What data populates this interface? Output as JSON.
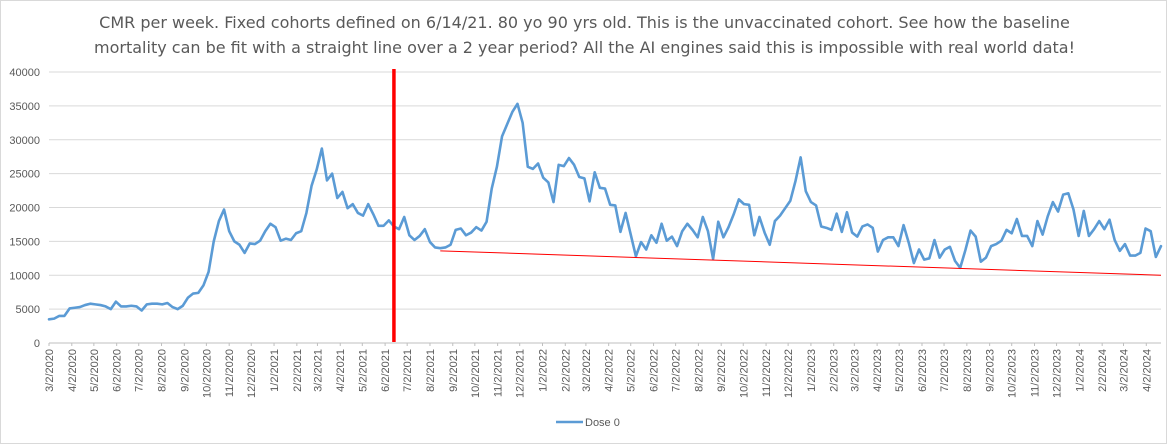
{
  "chart_data": {
    "type": "line",
    "title_line1": "CMR per week. Fixed cohorts defined on 6/14/21. 80 yo 90 yrs old. This is the unvaccinated cohort. See how the baseline",
    "title_line2": "mortality can be fit with a straight line over a 2 year period? All the AI engines said this is impossible with real world data!",
    "xlabel": "",
    "ylabel": "",
    "ylim": [
      0,
      40000
    ],
    "y_ticks": [
      0,
      5000,
      10000,
      15000,
      20000,
      25000,
      30000,
      35000,
      40000
    ],
    "x_start": "3/2/2020",
    "x_tick_labels": [
      "3/2/2020",
      "4/2/2020",
      "5/2/2020",
      "6/2/2020",
      "7/2/2020",
      "8/2/2020",
      "9/2/2020",
      "10/2/2020",
      "11/2/2020",
      "12/2/2020",
      "1/2/2021",
      "2/2/2021",
      "3/2/2021",
      "4/2/2021",
      "5/2/2021",
      "6/2/2021",
      "7/2/2021",
      "8/2/2021",
      "9/2/2021",
      "10/2/2021",
      "11/2/2021",
      "12/2/2021",
      "1/2/2022",
      "2/2/2022",
      "3/2/2022",
      "4/2/2022",
      "5/2/2022",
      "6/2/2022",
      "7/2/2022",
      "8/2/2022",
      "9/2/2022",
      "10/2/2022",
      "11/2/2022",
      "12/2/2022",
      "1/2/2023",
      "2/2/2023",
      "3/2/2023",
      "4/2/2023",
      "5/2/2023",
      "6/2/2023",
      "7/2/2023",
      "8/2/2023",
      "9/2/2023",
      "10/2/2023",
      "11/2/2023",
      "12/2/2023",
      "1/2/2024",
      "2/2/2024",
      "3/2/2024",
      "4/2/2024"
    ],
    "grid": true,
    "legend_position": "bottom",
    "series": [
      {
        "name": "Dose 0",
        "color": "#5b9bd5",
        "values": [
          3500,
          3600,
          4000,
          4000,
          5100,
          5200,
          5300,
          5600,
          5800,
          5700,
          5600,
          5400,
          5000,
          6100,
          5400,
          5400,
          5500,
          5400,
          4800,
          5700,
          5800,
          5800,
          5700,
          5900,
          5300,
          5000,
          5500,
          6700,
          7300,
          7400,
          8500,
          10500,
          15000,
          18000,
          19700,
          16500,
          15000,
          14500,
          13300,
          14700,
          14600,
          15100,
          16500,
          17600,
          17100,
          15100,
          15400,
          15200,
          16200,
          16500,
          19200,
          23200,
          25600,
          28700,
          24000,
          25000,
          21400,
          22300,
          19900,
          20500,
          19200,
          18800,
          20500,
          19000,
          17300,
          17300,
          18100,
          17200,
          16800,
          18600,
          15900,
          15200,
          15800,
          16800,
          14900,
          14100,
          14000,
          14100,
          14500,
          16700,
          16900,
          15900,
          16300,
          17100,
          16600,
          17900,
          22800,
          26000,
          30500,
          32300,
          34100,
          35300,
          32500,
          26000,
          25700,
          26500,
          24400,
          23700,
          20800,
          26300,
          26100,
          27300,
          26300,
          24500,
          24300,
          20900,
          25200,
          22900,
          22800,
          20400,
          20300,
          16400,
          19200,
          16000,
          12800,
          14900,
          13800,
          15900,
          14800,
          17600,
          15100,
          15700,
          14300,
          16500,
          17600,
          16700,
          15600,
          18600,
          16500,
          12400,
          17900,
          15600,
          17100,
          19000,
          21200,
          20500,
          20400,
          15900,
          18600,
          16300,
          14500,
          18000,
          18800,
          19900,
          21000,
          23900,
          27400,
          22400,
          20800,
          20300,
          17200,
          17000,
          16700,
          19100,
          16400,
          19300,
          16300,
          15700,
          17200,
          17500,
          17000,
          13500,
          15200,
          15600,
          15600,
          14300,
          17400,
          14800,
          11800,
          13800,
          12300,
          12500,
          15200,
          12600,
          13800,
          14200,
          12100,
          11100,
          13700,
          16600,
          15700,
          12000,
          12600,
          14300,
          14600,
          15100,
          16700,
          16200,
          18300,
          15800,
          15800,
          14300,
          18000,
          16000,
          18700,
          20800,
          19400,
          21900,
          22100,
          19700,
          15800,
          19500,
          15800,
          16800,
          18000,
          16800,
          18200,
          15200,
          13600,
          14600,
          12900,
          12900,
          13300,
          16900,
          16500,
          12700,
          14300
        ]
      }
    ],
    "trend_line": {
      "color": "#ff0000",
      "x_start_date": "8/16/2021",
      "y_start": 13600,
      "y_end": 10000
    },
    "marker_line": {
      "color": "#ff0000",
      "date": "6/14/2021"
    }
  }
}
